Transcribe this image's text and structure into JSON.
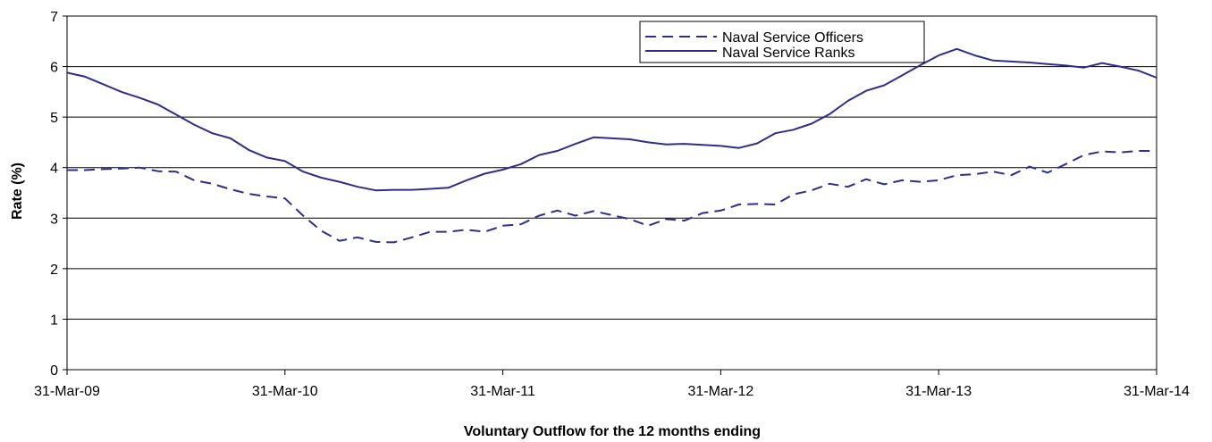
{
  "chart_data": {
    "type": "line",
    "title": "",
    "xlabel": "Voluntary Outflow for the 12 months ending",
    "ylabel": "Rate (%)",
    "ylim": [
      0,
      7
    ],
    "yticks": [
      "0",
      "1",
      "2",
      "3",
      "4",
      "5",
      "6",
      "7"
    ],
    "xlim": [
      "31-Mar-09",
      "31-Mar-14"
    ],
    "xtick_labels": [
      "31-Mar-09",
      "31-Mar-10",
      "31-Mar-11",
      "31-Mar-12",
      "31-Mar-13",
      "31-Mar-14"
    ],
    "grid": "horizontal",
    "legend_position": "top-right",
    "line_color": "#2E2E8A",
    "x": [
      "Mar-09",
      "Apr-09",
      "May-09",
      "Jun-09",
      "Jul-09",
      "Aug-09",
      "Sep-09",
      "Oct-09",
      "Nov-09",
      "Dec-09",
      "Jan-10",
      "Feb-10",
      "Mar-10",
      "Apr-10",
      "May-10",
      "Jun-10",
      "Jul-10",
      "Aug-10",
      "Sep-10",
      "Oct-10",
      "Nov-10",
      "Dec-10",
      "Jan-11",
      "Feb-11",
      "Mar-11",
      "Apr-11",
      "May-11",
      "Jun-11",
      "Jul-11",
      "Aug-11",
      "Sep-11",
      "Oct-11",
      "Nov-11",
      "Dec-11",
      "Jan-12",
      "Feb-12",
      "Mar-12",
      "Apr-12",
      "May-12",
      "Jun-12",
      "Jul-12",
      "Aug-12",
      "Sep-12",
      "Oct-12",
      "Nov-12",
      "Dec-12",
      "Jan-13",
      "Feb-13",
      "Mar-13",
      "Apr-13",
      "May-13",
      "Jun-13",
      "Jul-13",
      "Aug-13",
      "Sep-13",
      "Oct-13",
      "Nov-13",
      "Dec-13",
      "Jan-14",
      "Feb-14",
      "Mar-14"
    ],
    "series": [
      {
        "name": "Naval Service Officers",
        "style": "dashed",
        "values": [
          3.95,
          3.95,
          3.97,
          3.98,
          4.0,
          3.93,
          3.92,
          3.75,
          3.68,
          3.57,
          3.48,
          3.43,
          3.39,
          3.05,
          2.75,
          2.55,
          2.62,
          2.53,
          2.52,
          2.62,
          2.73,
          2.73,
          2.77,
          2.73,
          2.85,
          2.88,
          3.05,
          3.15,
          3.05,
          3.14,
          3.06,
          2.98,
          2.85,
          2.98,
          2.95,
          3.1,
          3.15,
          3.27,
          3.28,
          3.27,
          3.47,
          3.55,
          3.68,
          3.62,
          3.77,
          3.67,
          3.75,
          3.72,
          3.75,
          3.85,
          3.87,
          3.92,
          3.85,
          4.02,
          3.9,
          4.07,
          4.25,
          4.32,
          4.3,
          4.33,
          4.33
        ]
      },
      {
        "name": "Naval Service Ranks",
        "style": "solid",
        "values": [
          5.88,
          5.8,
          5.65,
          5.5,
          5.38,
          5.25,
          5.05,
          4.85,
          4.68,
          4.58,
          4.35,
          4.2,
          4.13,
          3.92,
          3.8,
          3.72,
          3.62,
          3.55,
          3.56,
          3.56,
          3.58,
          3.6,
          3.75,
          3.88,
          3.96,
          4.07,
          4.25,
          4.33,
          4.47,
          4.6,
          4.58,
          4.56,
          4.5,
          4.46,
          4.47,
          4.45,
          4.43,
          4.39,
          4.48,
          4.68,
          4.75,
          4.87,
          5.06,
          5.32,
          5.52,
          5.63,
          5.83,
          6.03,
          6.22,
          6.35,
          6.22,
          6.12,
          6.1,
          6.08,
          6.05,
          6.02,
          5.98,
          6.07,
          6.0,
          5.92,
          5.78
        ]
      }
    ]
  }
}
